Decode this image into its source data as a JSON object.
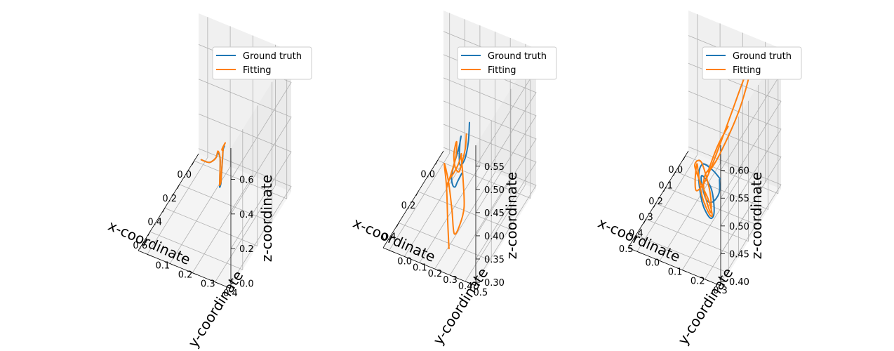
{
  "colors": {
    "ground_truth": "#1f77b4",
    "fitting": "#ff7f0e",
    "pane": "#f2f2f2",
    "grid": "#b0b0b0"
  },
  "chart_data": [
    {
      "type": "line3d",
      "xlabel": "x-coordinate",
      "ylabel": "y-coordinate",
      "zlabel": "z-coordinate",
      "xlim": [
        -0.03,
        0.68
      ],
      "ylim": [
        0.05,
        0.45
      ],
      "zlim": [
        0.0,
        0.78
      ],
      "xticks": [
        "0.0",
        "0.2",
        "0.4",
        "0.6"
      ],
      "yticks": [
        "0.1",
        "0.2",
        "0.3",
        "0.4"
      ],
      "zticks": [
        "0.0",
        "0.2",
        "0.4",
        "0.6"
      ],
      "legend": [
        "Ground truth",
        "Fitting"
      ],
      "legend_loc": "top-right",
      "grid": true,
      "series": [
        {
          "name": "Ground truth",
          "points": [
            [
              0.02,
              0.08,
              0.02
            ],
            [
              0.05,
              0.12,
              0.05
            ],
            [
              0.09,
              0.15,
              0.1
            ],
            [
              0.12,
              0.18,
              0.16
            ],
            [
              0.15,
              0.2,
              0.22
            ],
            [
              0.18,
              0.22,
              0.22
            ],
            [
              0.21,
              0.23,
              0.15
            ],
            [
              0.24,
              0.24,
              0.12
            ],
            [
              0.28,
              0.26,
              0.18
            ],
            [
              0.33,
              0.28,
              0.26
            ],
            [
              0.38,
              0.3,
              0.34
            ],
            [
              0.43,
              0.32,
              0.42
            ],
            [
              0.48,
              0.34,
              0.5
            ],
            [
              0.53,
              0.36,
              0.58
            ],
            [
              0.58,
              0.38,
              0.66
            ],
            [
              0.62,
              0.4,
              0.72
            ]
          ]
        },
        {
          "name": "Fitting",
          "points": [
            [
              0.02,
              0.08,
              0.02
            ],
            [
              0.05,
              0.12,
              0.05
            ],
            [
              0.09,
              0.15,
              0.1
            ],
            [
              0.12,
              0.18,
              0.16
            ],
            [
              0.15,
              0.2,
              0.23
            ],
            [
              0.18,
              0.22,
              0.22
            ],
            [
              0.21,
              0.23,
              0.15
            ],
            [
              0.24,
              0.24,
              0.13
            ],
            [
              0.28,
              0.26,
              0.19
            ],
            [
              0.33,
              0.28,
              0.27
            ],
            [
              0.38,
              0.3,
              0.35
            ],
            [
              0.43,
              0.32,
              0.43
            ],
            [
              0.48,
              0.34,
              0.51
            ],
            [
              0.53,
              0.36,
              0.59
            ],
            [
              0.58,
              0.38,
              0.67
            ],
            [
              0.61,
              0.4,
              0.73
            ],
            [
              0.54,
              0.36,
              0.62
            ],
            [
              0.47,
              0.34,
              0.55
            ]
          ]
        }
      ]
    },
    {
      "type": "line3d",
      "xlabel": "x-coordinate",
      "ylabel": "y-coordinate",
      "zlabel": "z-coordinate",
      "xlim": [
        -0.05,
        0.52
      ],
      "ylim": [
        -0.02,
        0.55
      ],
      "zlim": [
        0.29,
        0.58
      ],
      "xticks": [
        "0.0",
        "0.2",
        "0.4"
      ],
      "yticks": [
        "0.0",
        "0.1",
        "0.2",
        "0.3",
        "0.4",
        "0.5"
      ],
      "zticks": [
        "0.30",
        "0.35",
        "0.40",
        "0.45",
        "0.50",
        "0.55"
      ],
      "legend": [
        "Ground truth",
        "Fitting"
      ],
      "legend_loc": "top-right",
      "grid": true,
      "series": [
        {
          "name": "Ground truth",
          "points": [
            [
              0.38,
              0.42,
              0.56
            ],
            [
              0.36,
              0.4,
              0.51
            ],
            [
              0.33,
              0.36,
              0.46
            ],
            [
              0.28,
              0.3,
              0.42
            ],
            [
              0.2,
              0.24,
              0.4
            ],
            [
              0.1,
              0.18,
              0.39
            ],
            [
              0.03,
              0.14,
              0.37
            ],
            [
              0.02,
              0.12,
              0.34
            ],
            [
              0.07,
              0.12,
              0.32
            ],
            [
              0.15,
              0.16,
              0.33
            ],
            [
              0.23,
              0.22,
              0.35
            ],
            [
              0.3,
              0.28,
              0.38
            ],
            [
              0.34,
              0.32,
              0.41
            ],
            [
              0.36,
              0.36,
              0.44
            ]
          ]
        },
        {
          "name": "Fitting",
          "points": [
            [
              0.44,
              0.44,
              0.56
            ],
            [
              0.42,
              0.42,
              0.52
            ],
            [
              0.4,
              0.38,
              0.47
            ],
            [
              0.36,
              0.34,
              0.44
            ],
            [
              0.3,
              0.28,
              0.42
            ],
            [
              0.22,
              0.22,
              0.41
            ],
            [
              0.14,
              0.18,
              0.4
            ],
            [
              0.07,
              0.14,
              0.37
            ],
            [
              0.05,
              0.12,
              0.33
            ],
            [
              0.1,
              0.12,
              0.31
            ],
            [
              0.18,
              0.15,
              0.32
            ],
            [
              0.24,
              0.2,
              0.36
            ],
            [
              0.28,
              0.26,
              0.4
            ],
            [
              0.3,
              0.3,
              0.43
            ],
            [
              0.32,
              0.33,
              0.46
            ],
            [
              0.35,
              0.35,
              0.47
            ],
            [
              0.38,
              0.38,
              0.44
            ],
            [
              0.4,
              0.4,
              0.39
            ],
            [
              0.38,
              0.36,
              0.34
            ],
            [
              0.34,
              0.3,
              0.3
            ],
            [
              0.3,
              0.26,
              0.33
            ],
            [
              0.27,
              0.22,
              0.37
            ],
            [
              0.28,
              0.2,
              0.41
            ],
            [
              0.32,
              0.24,
              0.38
            ],
            [
              0.37,
              0.28,
              0.33
            ],
            [
              0.42,
              0.32,
              0.3
            ]
          ]
        }
      ]
    },
    {
      "type": "line3d",
      "xlabel": "x-coordinate",
      "ylabel": "y-coordinate",
      "zlabel": "z-coordinate",
      "xlim": [
        -0.03,
        0.58
      ],
      "ylim": [
        -0.03,
        0.36
      ],
      "zlim": [
        0.37,
        0.61
      ],
      "xticks": [
        "0.0",
        "0.1",
        "0.2",
        "0.3",
        "0.4",
        "0.5"
      ],
      "yticks": [
        "0.0",
        "0.1",
        "0.2",
        "0.3"
      ],
      "zticks": [
        "0.40",
        "0.45",
        "0.50",
        "0.55",
        "0.60"
      ],
      "legend": [
        "Ground truth",
        "Fitting"
      ],
      "legend_loc": "top-right",
      "grid": true,
      "series": [
        {
          "name": "Ground truth",
          "points": [
            [
              0.25,
              0.22,
              0.44
            ],
            [
              0.28,
              0.2,
              0.46
            ],
            [
              0.33,
              0.18,
              0.48
            ],
            [
              0.37,
              0.18,
              0.47
            ],
            [
              0.38,
              0.2,
              0.43
            ],
            [
              0.35,
              0.22,
              0.4
            ],
            [
              0.31,
              0.22,
              0.4
            ],
            [
              0.29,
              0.2,
              0.43
            ],
            [
              0.33,
              0.18,
              0.46
            ],
            [
              0.39,
              0.2,
              0.47
            ],
            [
              0.44,
              0.24,
              0.46
            ],
            [
              0.47,
              0.28,
              0.47
            ],
            [
              0.5,
              0.32,
              0.5
            ],
            [
              0.52,
              0.33,
              0.53
            ]
          ]
        },
        {
          "name": "Fitting",
          "points": [
            [
              0.0,
              0.15,
              0.45
            ],
            [
              0.05,
              0.13,
              0.43
            ],
            [
              0.1,
              0.12,
              0.41
            ],
            [
              0.15,
              0.13,
              0.41
            ],
            [
              0.16,
              0.18,
              0.45
            ],
            [
              0.11,
              0.24,
              0.52
            ],
            [
              0.07,
              0.27,
              0.58
            ],
            [
              0.09,
              0.26,
              0.58
            ],
            [
              0.14,
              0.22,
              0.52
            ],
            [
              0.19,
              0.18,
              0.46
            ],
            [
              0.23,
              0.15,
              0.42
            ],
            [
              0.27,
              0.13,
              0.41
            ],
            [
              0.31,
              0.14,
              0.44
            ],
            [
              0.34,
              0.16,
              0.48
            ],
            [
              0.37,
              0.18,
              0.47
            ],
            [
              0.38,
              0.2,
              0.44
            ],
            [
              0.36,
              0.22,
              0.41
            ],
            [
              0.33,
              0.22,
              0.4
            ],
            [
              0.32,
              0.2,
              0.42
            ],
            [
              0.36,
              0.18,
              0.46
            ],
            [
              0.41,
              0.18,
              0.5
            ],
            [
              0.44,
              0.22,
              0.52
            ],
            [
              0.45,
              0.26,
              0.48
            ],
            [
              0.44,
              0.26,
              0.44
            ],
            [
              0.46,
              0.24,
              0.48
            ],
            [
              0.5,
              0.26,
              0.52
            ],
            [
              0.53,
              0.3,
              0.55
            ]
          ]
        }
      ]
    }
  ]
}
